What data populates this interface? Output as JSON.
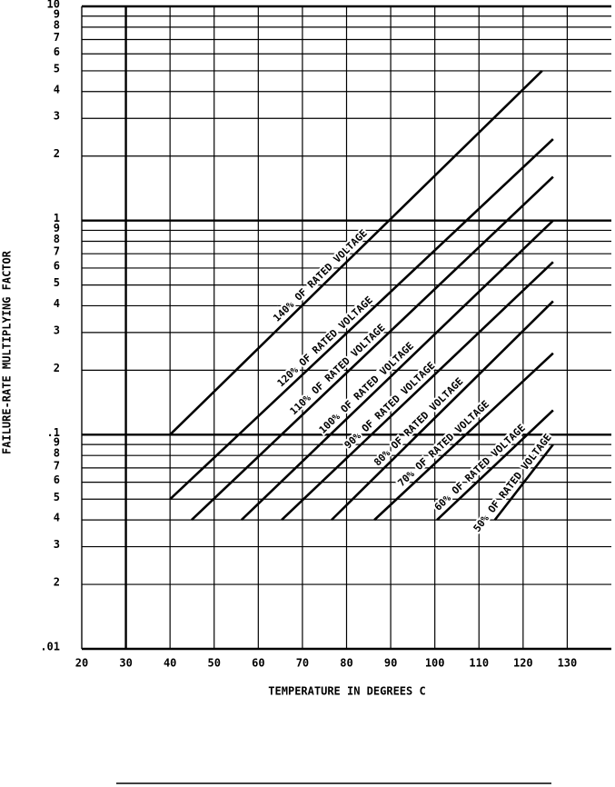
{
  "chart_data": {
    "type": "line",
    "y_label": "FAILURE-RATE MULTIPLYING FACTOR",
    "x_label": "TEMPERATURE IN DEGREES C",
    "log_y": true,
    "grid": true,
    "xlim": [
      20,
      140
    ],
    "ylim": [
      0.01,
      10
    ],
    "xticks": [
      20,
      30,
      40,
      50,
      60,
      70,
      80,
      90,
      100,
      110,
      120,
      130
    ],
    "yticks": [
      {
        "value": 0.01,
        "label": ".01"
      },
      {
        "value": 0.02,
        "label": "2"
      },
      {
        "value": 0.03,
        "label": "3"
      },
      {
        "value": 0.04,
        "label": "4"
      },
      {
        "value": 0.05,
        "label": "5"
      },
      {
        "value": 0.06,
        "label": "6"
      },
      {
        "value": 0.07,
        "label": "7"
      },
      {
        "value": 0.08,
        "label": "8"
      },
      {
        "value": 0.09,
        "label": "9"
      },
      {
        "value": 0.1,
        "label": ".1"
      },
      {
        "value": 0.2,
        "label": "2"
      },
      {
        "value": 0.3,
        "label": "3"
      },
      {
        "value": 0.4,
        "label": "4"
      },
      {
        "value": 0.5,
        "label": "5"
      },
      {
        "value": 0.6,
        "label": "6"
      },
      {
        "value": 0.7,
        "label": "7"
      },
      {
        "value": 0.8,
        "label": "8"
      },
      {
        "value": 0.9,
        "label": "9"
      },
      1,
      2,
      3,
      4,
      5,
      6,
      7,
      8,
      9,
      10
    ],
    "series": [
      {
        "name": "140% OF RATED VOLTAGE",
        "color": "#000000",
        "x": [
          40,
          124.3
        ],
        "values": [
          0.1,
          5
        ]
      },
      {
        "name": "120% OF RATED VOLTAGE",
        "color": "#000000",
        "x": [
          40,
          126.8
        ],
        "values": [
          0.05,
          2.4
        ]
      },
      {
        "name": "110% OF RATED VOLTAGE",
        "color": "#000000",
        "x": [
          44.9,
          126.8
        ],
        "values": [
          0.04,
          1.6
        ]
      },
      {
        "name": "100% OF RATED VOLTAGE",
        "color": "#000000",
        "x": [
          56.2,
          126.8
        ],
        "values": [
          0.04,
          1.0
        ]
      },
      {
        "name": "90% OF RATED VOLTAGE",
        "color": "#000000",
        "x": [
          65.3,
          126.8
        ],
        "values": [
          0.04,
          0.64
        ]
      },
      {
        "name": "80% OF RATED VOLTAGE",
        "color": "#000000",
        "x": [
          76.6,
          126.8
        ],
        "values": [
          0.04,
          0.42
        ]
      },
      {
        "name": "70% OF RATED VOLTAGE",
        "color": "#000000",
        "x": [
          86.3,
          126.8
        ],
        "values": [
          0.04,
          0.24
        ]
      },
      {
        "name": "60% OF RATED VOLTAGE",
        "color": "#000000",
        "x": [
          100.5,
          126.8
        ],
        "values": [
          0.04,
          0.13
        ]
      },
      {
        "name": "50% OF RATED VOLTAGE",
        "color": "#000000",
        "x": [
          113.6,
          126.8
        ],
        "values": [
          0.04,
          0.09
        ]
      }
    ]
  }
}
